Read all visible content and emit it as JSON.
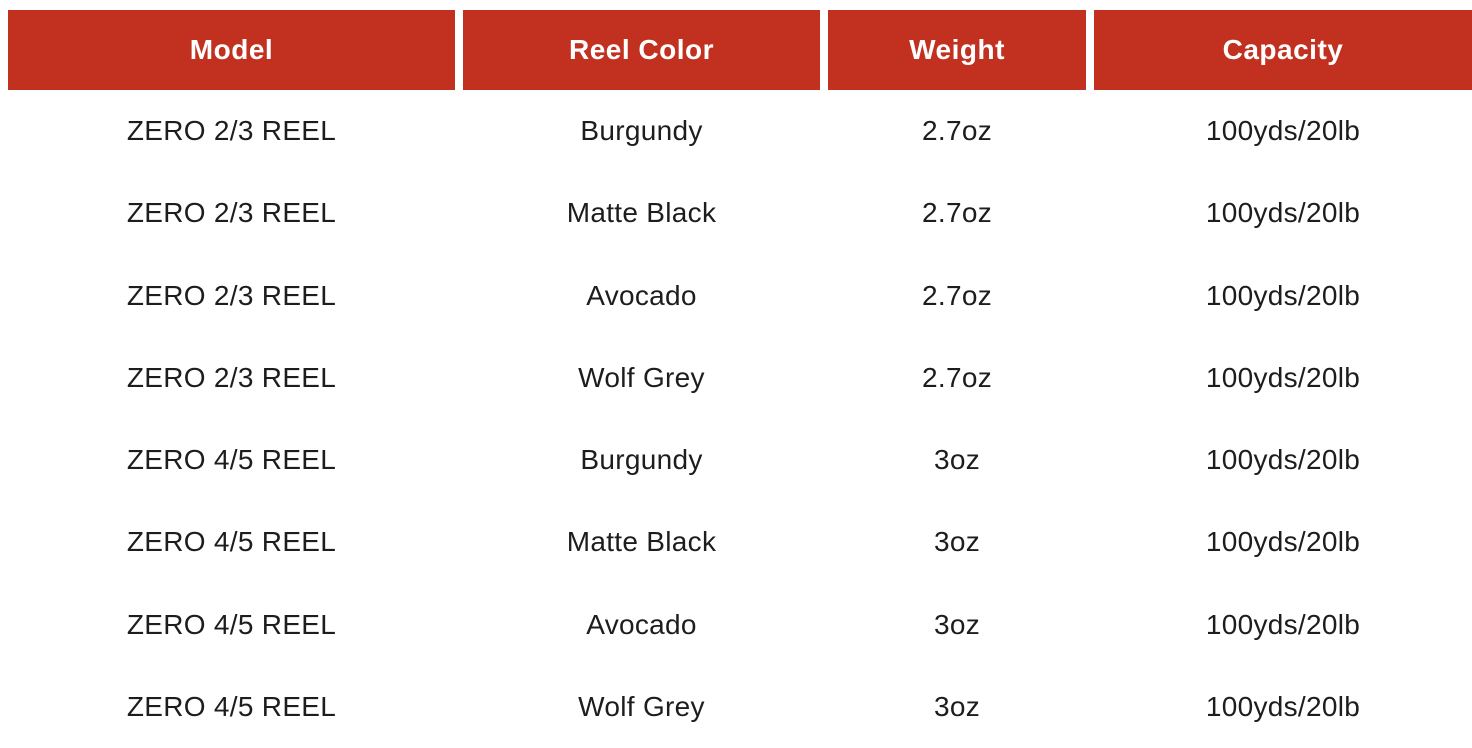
{
  "chart_data": {
    "type": "table",
    "columns": [
      "Model",
      "Reel Color",
      "Weight",
      "Capacity"
    ],
    "rows": [
      {
        "model": "ZERO 2/3 REEL",
        "reel_color": "Burgundy",
        "weight": "2.7oz",
        "capacity": "100yds/20lb"
      },
      {
        "model": "ZERO 2/3 REEL",
        "reel_color": "Matte Black",
        "weight": "2.7oz",
        "capacity": "100yds/20lb"
      },
      {
        "model": "ZERO 2/3 REEL",
        "reel_color": "Avocado",
        "weight": "2.7oz",
        "capacity": "100yds/20lb"
      },
      {
        "model": "ZERO 2/3 REEL",
        "reel_color": "Wolf Grey",
        "weight": "2.7oz",
        "capacity": "100yds/20lb"
      },
      {
        "model": "ZERO 4/5 REEL",
        "reel_color": "Burgundy",
        "weight": "3oz",
        "capacity": "100yds/20lb"
      },
      {
        "model": "ZERO 4/5 REEL",
        "reel_color": "Matte Black",
        "weight": "3oz",
        "capacity": "100yds/20lb"
      },
      {
        "model": "ZERO 4/5 REEL",
        "reel_color": "Avocado",
        "weight": "3oz",
        "capacity": "100yds/20lb"
      },
      {
        "model": "ZERO 4/5 REEL",
        "reel_color": "Wolf Grey",
        "weight": "3oz",
        "capacity": "100yds/20lb"
      }
    ],
    "layout": {
      "legend": "none",
      "grid": "off",
      "header_style": "solid-fill",
      "cell_alignment": "center"
    }
  },
  "colors": {
    "header_background": "#c23120",
    "header_text": "#ffffff",
    "body_text": "#1d1d1d",
    "page_background": "#ffffff"
  }
}
